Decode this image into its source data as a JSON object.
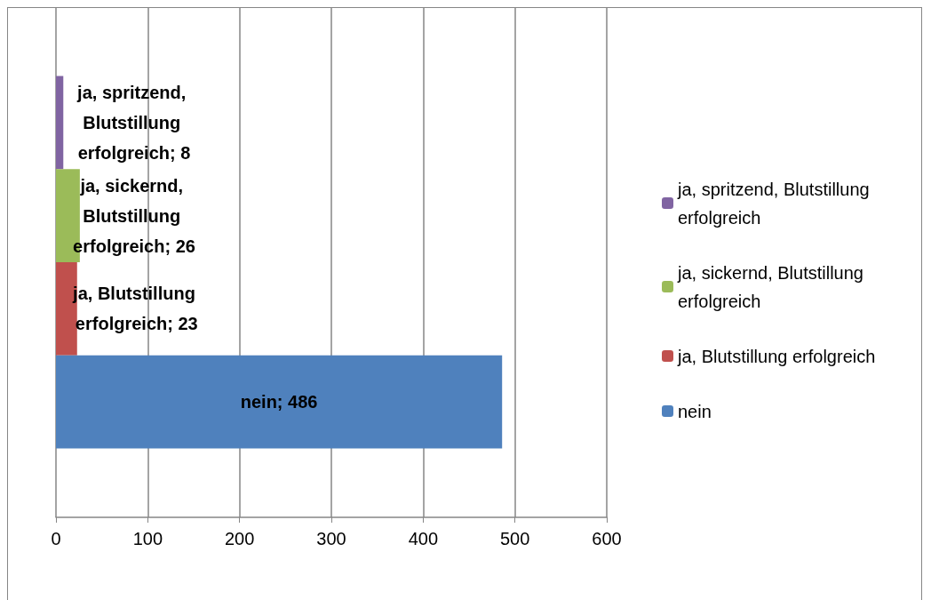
{
  "chart_data": {
    "type": "bar",
    "orientation": "horizontal",
    "categories": [
      null
    ],
    "series": [
      {
        "name": "nein",
        "color": "#4f81bd",
        "values": [
          486
        ],
        "value_labels": [
          "nein; 486"
        ]
      },
      {
        "name": "ja, Blutstillung erfolgreich",
        "color": "#c0504d",
        "values": [
          23
        ],
        "value_labels": [
          "ja, Blutstillung erfolgreich; 23"
        ]
      },
      {
        "name": "ja, sickernd, Blutstillung erfolgreich",
        "color": "#9bbb59",
        "values": [
          26
        ],
        "value_labels": [
          "ja, sickernd, Blutstillung erfolgreich; 26"
        ]
      },
      {
        "name": "ja, spritzend, Blutstillung erfolgreich",
        "color": "#8064a2",
        "values": [
          8
        ],
        "value_labels": [
          "ja, spritzend, Blutstillung erfolgreich; 8"
        ]
      }
    ],
    "xlim": [
      0,
      600
    ],
    "xticks": [
      0,
      100,
      200,
      300,
      400,
      500,
      600
    ],
    "grid": "x",
    "legend": "right"
  }
}
